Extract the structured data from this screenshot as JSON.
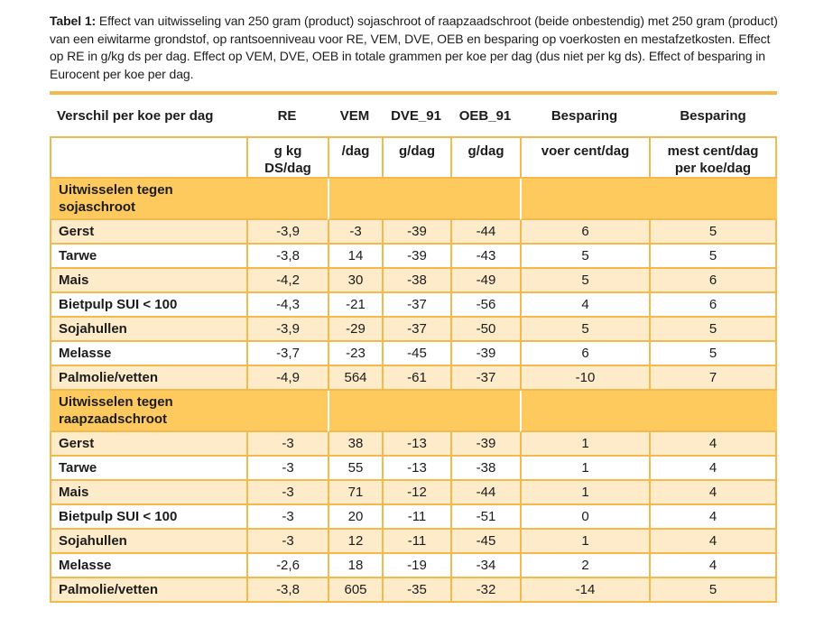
{
  "caption": {
    "label": "Tabel 1:",
    "text": " Effect van uitwisseling van 250 gram (product) sojaschroot of raapzaadschroot (beide onbestendig) met 250 gram (product) van een eiwitarme grondstof, op rantsoenniveau voor RE, VEM, DVE, OEB en besparing op voerkosten en mestafzetkosten. Effect op RE in g/kg ds per dag. Effect op VEM, DVE, OEB in totale grammen per koe per dag (dus niet per kg ds). Effect of besparing in Eurocent per koe per dag."
  },
  "colors": {
    "rule_and_borders": "#F3B94C",
    "section_band": "#FEC95D",
    "shaded_row": "#FDEBC9",
    "text": "#1C1C1C",
    "background": "#FFFFFF"
  },
  "table": {
    "columns": [
      {
        "label": "Verschil per koe per dag",
        "unit": ""
      },
      {
        "label": "RE",
        "unit": "g kg\nDS/dag"
      },
      {
        "label": "VEM",
        "unit": "/dag"
      },
      {
        "label": "DVE_91",
        "unit": "g/dag"
      },
      {
        "label": "OEB_91",
        "unit": "g/dag"
      },
      {
        "label": "Besparing",
        "unit": "voer cent/dag"
      },
      {
        "label": "Besparing",
        "unit": "mest cent/dag\nper koe/dag"
      }
    ],
    "sections": [
      {
        "header": "Uitwisselen tegen\nsojaschroot",
        "rows": [
          {
            "label": "Gerst",
            "values": [
              "-3,9",
              "-3",
              "-39",
              "-44",
              "6",
              "5"
            ]
          },
          {
            "label": "Tarwe",
            "values": [
              "-3,8",
              "14",
              "-39",
              "-43",
              "5",
              "5"
            ]
          },
          {
            "label": "Mais",
            "values": [
              "-4,2",
              "30",
              "-38",
              "-49",
              "5",
              "6"
            ]
          },
          {
            "label": "Bietpulp SUI < 100",
            "values": [
              "-4,3",
              "-21",
              "-37",
              "-56",
              "4",
              "6"
            ]
          },
          {
            "label": "Sojahullen",
            "values": [
              "-3,9",
              "-29",
              "-37",
              "-50",
              "5",
              "5"
            ]
          },
          {
            "label": "Melasse",
            "values": [
              "-3,7",
              "-23",
              "-45",
              "-39",
              "6",
              "5"
            ]
          },
          {
            "label": "Palmolie/vetten",
            "values": [
              "-4,9",
              "564",
              "-61",
              "-37",
              "-10",
              "7"
            ]
          }
        ]
      },
      {
        "header": "Uitwisselen tegen\nraapzaadschroot",
        "rows": [
          {
            "label": "Gerst",
            "values": [
              "-3",
              "38",
              "-13",
              "-39",
              "1",
              "4"
            ]
          },
          {
            "label": "Tarwe",
            "values": [
              "-3",
              "55",
              "-13",
              "-38",
              "1",
              "4"
            ]
          },
          {
            "label": "Mais",
            "values": [
              "-3",
              "71",
              "-12",
              "-44",
              "1",
              "4"
            ]
          },
          {
            "label": "Bietpulp SUI < 100",
            "values": [
              "-3",
              "20",
              "-11",
              "-51",
              "0",
              "4"
            ]
          },
          {
            "label": "Sojahullen",
            "values": [
              "-3",
              "12",
              "-11",
              "-45",
              "1",
              "4"
            ]
          },
          {
            "label": "Melasse",
            "values": [
              "-2,6",
              "18",
              "-19",
              "-34",
              "2",
              "4"
            ]
          },
          {
            "label": "Palmolie/vetten",
            "values": [
              "-3,8",
              "605",
              "-35",
              "-32",
              "-14",
              "5"
            ]
          }
        ]
      }
    ]
  }
}
